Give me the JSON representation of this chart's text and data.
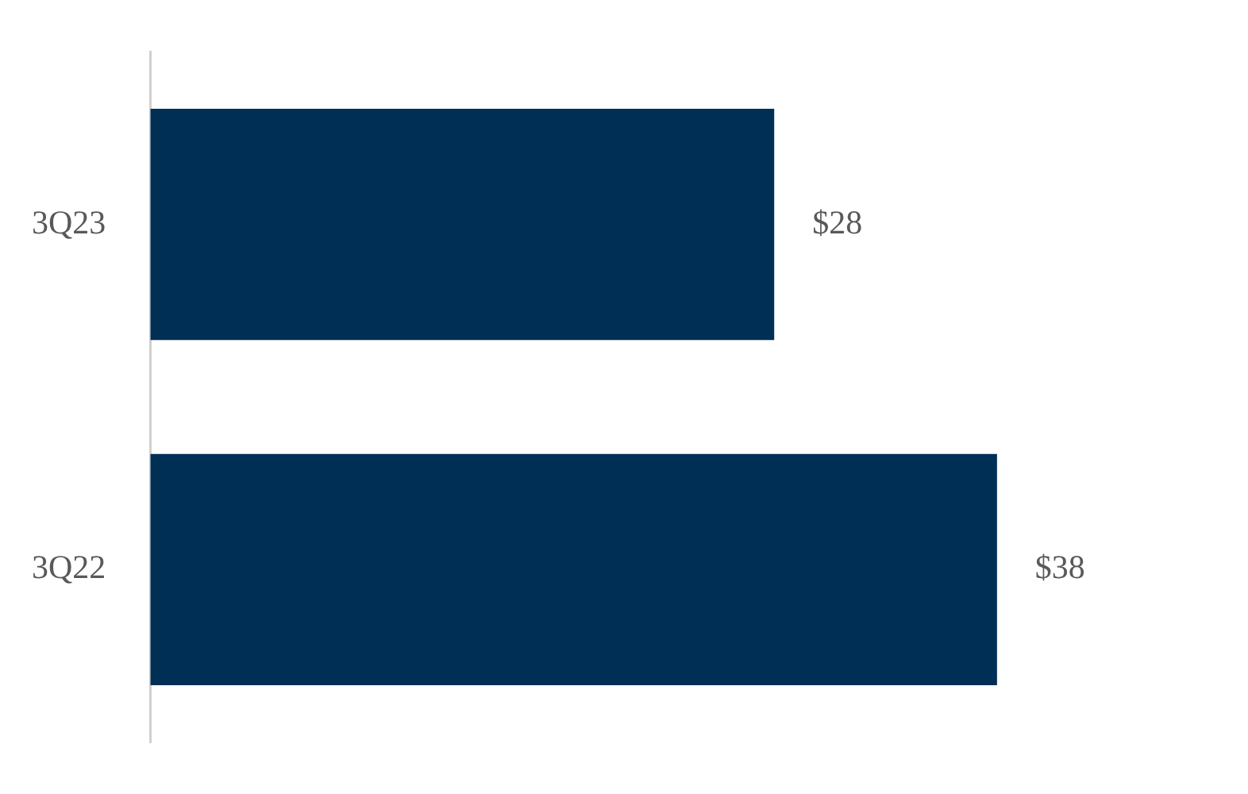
{
  "chart_data": {
    "type": "bar",
    "orientation": "horizontal",
    "categories": [
      "3Q23",
      "3Q22"
    ],
    "values": [
      28,
      38
    ],
    "value_labels": [
      "$28",
      "$38"
    ],
    "color": "#002f56",
    "legend": false,
    "tick_labels": "y"
  }
}
